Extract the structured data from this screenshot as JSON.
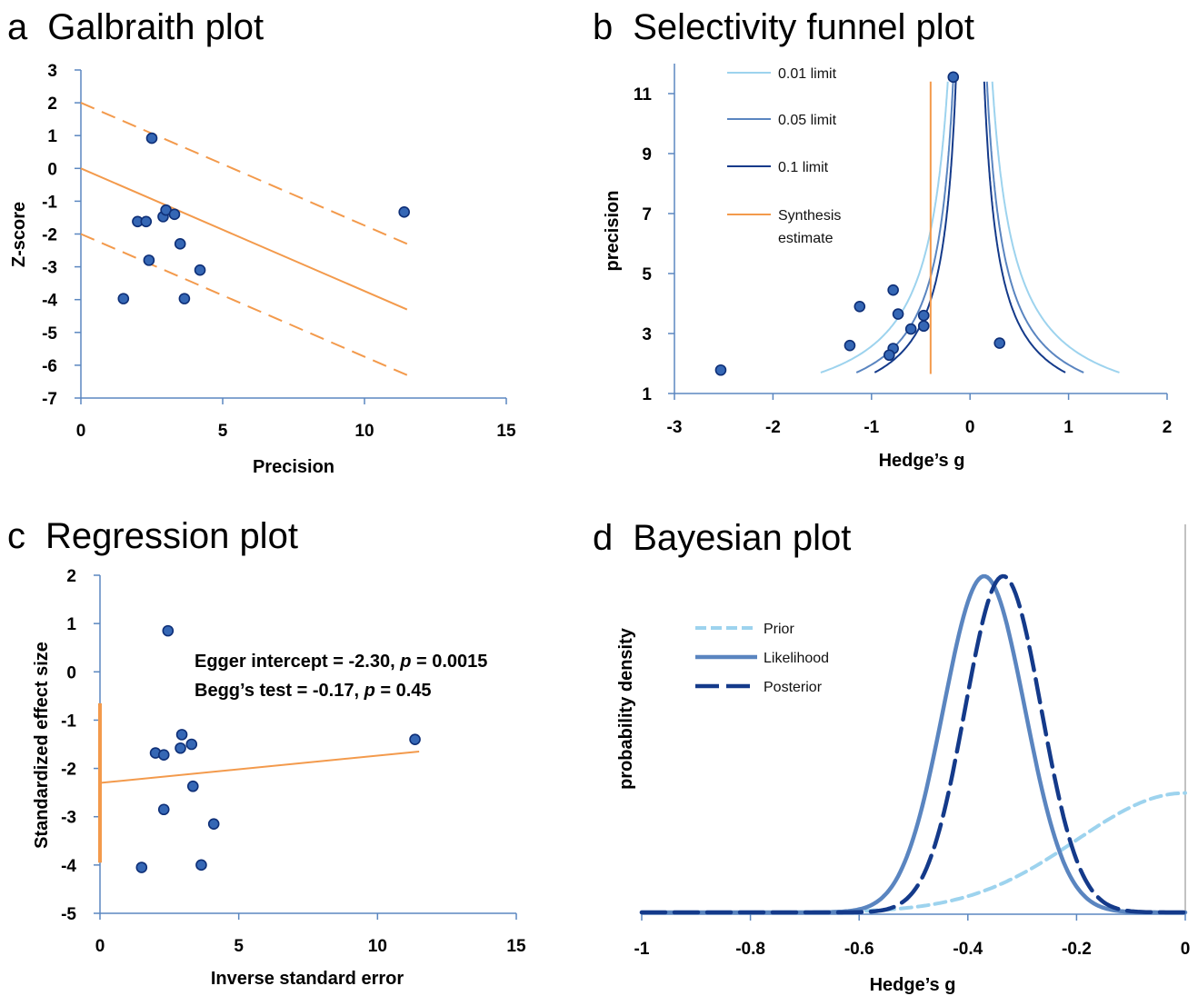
{
  "colors": {
    "axis": "#5b87c0",
    "orange": "#f39a4c",
    "point_fill": "#3567b5",
    "point_stroke": "#0e2f77",
    "light_blue": "#9dd3ee",
    "mid_blue": "#5a85c0",
    "dark_blue": "#143a8a"
  },
  "chart_data": [
    {
      "id": "a",
      "letter": "a",
      "title": "Galbraith plot",
      "type": "scatter",
      "xlabel": "Precision",
      "ylabel": "Z-score",
      "xlim": [
        0,
        15
      ],
      "ylim": [
        -7,
        3
      ],
      "xticks": [
        "0",
        "5",
        "10",
        "15"
      ],
      "yticks": [
        "3",
        "2",
        "1",
        "0",
        "-1",
        "-2",
        "-3",
        "-4",
        "-5",
        "-6",
        "-7"
      ],
      "points": [
        {
          "x": 2.5,
          "y": 0.92
        },
        {
          "x": 2.0,
          "y": -1.62
        },
        {
          "x": 2.3,
          "y": -1.62
        },
        {
          "x": 2.4,
          "y": -2.8
        },
        {
          "x": 1.5,
          "y": -3.97
        },
        {
          "x": 2.9,
          "y": -1.47
        },
        {
          "x": 3.0,
          "y": -1.27
        },
        {
          "x": 3.3,
          "y": -1.4
        },
        {
          "x": 3.5,
          "y": -2.3
        },
        {
          "x": 3.65,
          "y": -3.97
        },
        {
          "x": 4.2,
          "y": -3.1
        },
        {
          "x": 11.4,
          "y": -1.33
        }
      ],
      "lines": [
        {
          "style": "solid",
          "x": [
            0,
            11.5
          ],
          "y": [
            0,
            -4.3
          ]
        },
        {
          "style": "dashed",
          "x": [
            0,
            11.5
          ],
          "y": [
            2,
            -2.3
          ]
        },
        {
          "style": "dashed",
          "x": [
            0,
            11.5
          ],
          "y": [
            -2,
            -6.3
          ]
        }
      ]
    },
    {
      "id": "b",
      "letter": "b",
      "title": "Selectivity funnel plot",
      "type": "scatter",
      "xlabel": "Hedge’s g",
      "ylabel": "precision",
      "xlim": [
        -3,
        2
      ],
      "ylim": [
        1,
        12
      ],
      "xticks": [
        "-3",
        "-2",
        "-1",
        "0",
        "1",
        "2"
      ],
      "yticks": [
        "11",
        "9",
        "7",
        "5",
        "3",
        "1"
      ],
      "center": 0.0,
      "synthesis_estimate": -0.4,
      "legend": [
        {
          "label": "0.01 limit",
          "z": 2.576
        },
        {
          "label": "0.05 limit",
          "z": 1.96
        },
        {
          "label": "0.1 limit",
          "z": 1.645
        },
        {
          "label": "Synthesis estimate",
          "line1": "Synthesis",
          "line2": "estimate"
        }
      ],
      "points": [
        {
          "x": -0.17,
          "y": 11.55
        },
        {
          "x": -0.78,
          "y": 4.45
        },
        {
          "x": -1.12,
          "y": 3.9
        },
        {
          "x": -0.73,
          "y": 3.65
        },
        {
          "x": -0.47,
          "y": 3.6
        },
        {
          "x": -0.6,
          "y": 3.15
        },
        {
          "x": -0.47,
          "y": 3.25
        },
        {
          "x": -1.22,
          "y": 2.6
        },
        {
          "x": -0.78,
          "y": 2.5
        },
        {
          "x": -0.82,
          "y": 2.28
        },
        {
          "x": 0.3,
          "y": 2.68
        },
        {
          "x": -2.53,
          "y": 1.78
        }
      ]
    },
    {
      "id": "c",
      "letter": "c",
      "title": "Regression plot",
      "type": "scatter",
      "xlabel": "Inverse standard error",
      "ylabel": "Standardized effect size",
      "xlim": [
        0,
        15
      ],
      "ylim": [
        -5,
        2
      ],
      "xticks": [
        "0",
        "5",
        "10",
        "15"
      ],
      "yticks": [
        "2",
        "1",
        "0",
        "-1",
        "-2",
        "-3",
        "-4",
        "-5"
      ],
      "annotation_1": {
        "prefix": "Egger intercept = -2.30, ",
        "p": "p",
        "suffix": " = 0.0015"
      },
      "annotation_2": {
        "prefix": "Begg’s test = -0.17, ",
        "p": "p",
        "suffix": " = 0.45"
      },
      "regression": {
        "x": [
          0,
          11.5
        ],
        "y": [
          -2.3,
          -1.65
        ]
      },
      "intercept_ci": [
        -3.95,
        -0.65
      ],
      "points": [
        {
          "x": 2.45,
          "y": 0.85
        },
        {
          "x": 2.0,
          "y": -1.68
        },
        {
          "x": 2.3,
          "y": -1.72
        },
        {
          "x": 2.3,
          "y": -2.85
        },
        {
          "x": 1.5,
          "y": -4.05
        },
        {
          "x": 2.95,
          "y": -1.3
        },
        {
          "x": 2.9,
          "y": -1.58
        },
        {
          "x": 3.3,
          "y": -1.5
        },
        {
          "x": 3.35,
          "y": -2.37
        },
        {
          "x": 3.65,
          "y": -4.0
        },
        {
          "x": 4.1,
          "y": -3.15
        },
        {
          "x": 11.35,
          "y": -1.4
        }
      ]
    },
    {
      "id": "d",
      "letter": "d",
      "title": "Bayesian plot",
      "type": "line",
      "xlabel": "Hedge’s g",
      "ylabel": "probability density",
      "xlim": [
        -1,
        0
      ],
      "xticks": [
        "-1",
        "-0.8",
        "-0.6",
        "-0.4",
        "-0.2",
        "0"
      ],
      "series": [
        {
          "name": "Prior",
          "style": "dashed",
          "mean": 0.0,
          "sd": 0.2,
          "peak": 0.355
        },
        {
          "name": "Likelihood",
          "style": "solid",
          "mean": -0.37,
          "sd": 0.075,
          "peak": 1.0
        },
        {
          "name": "Posterior",
          "style": "longdash",
          "mean": -0.335,
          "sd": 0.07,
          "peak": 1.0
        }
      ]
    }
  ]
}
